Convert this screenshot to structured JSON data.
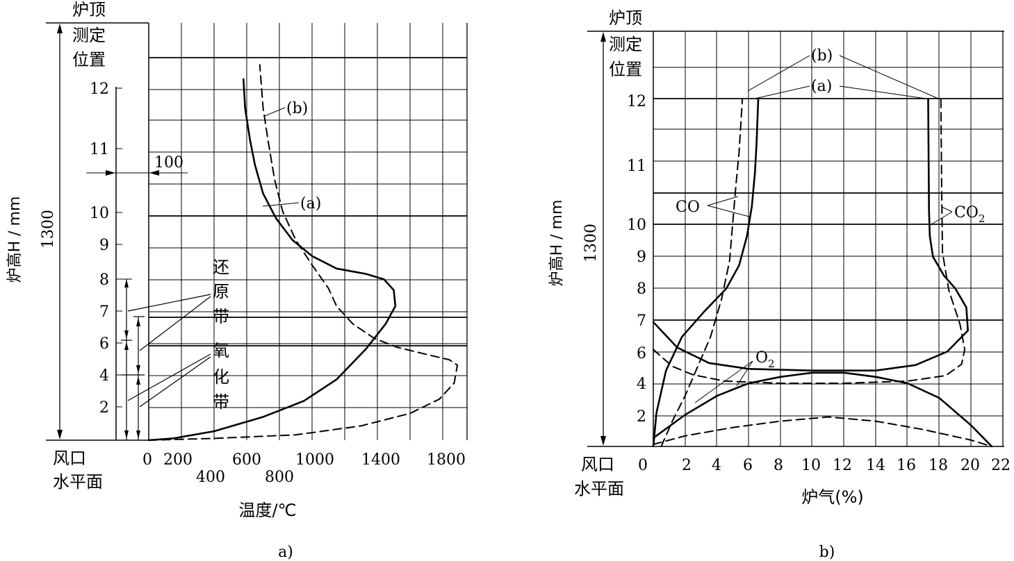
{
  "chart_data": [
    {
      "id": "a",
      "type": "line",
      "caption": "a)",
      "top_label_line1": "炉顶",
      "top_label_line2": "测定",
      "top_label_line3": "位置",
      "bottom_label_line1": "风口",
      "bottom_label_line2": "水平面",
      "ylabel": "炉高H / mm",
      "height_dim": "1300",
      "xlabel": "温度/℃",
      "xlim": [
        0,
        2000
      ],
      "x_ticks_row1": [
        "0",
        "200",
        "600",
        "1000",
        "1400",
        "1800"
      ],
      "x_ticks_row2": [
        "400",
        "800"
      ],
      "y_ticks": [
        "2",
        "4",
        "6",
        "7",
        "8",
        "9",
        "10",
        "11",
        "12"
      ],
      "dim_100": "100",
      "zone_reduction": [
        "还",
        "原",
        "带"
      ],
      "zone_oxidation": [
        "氧",
        "化",
        "带"
      ],
      "series": [
        {
          "name": "(a)",
          "style": "solid",
          "points": [
            [
              0,
              0
            ],
            [
              150,
              0.05
            ],
            [
              400,
              0.25
            ],
            [
              700,
              0.65
            ],
            [
              950,
              1.1
            ],
            [
              1150,
              1.7
            ],
            [
              1330,
              2.55
            ],
            [
              1450,
              3.25
            ],
            [
              1510,
              3.75
            ],
            [
              1500,
              4.2
            ],
            [
              1440,
              4.5
            ],
            [
              1330,
              4.65
            ],
            [
              1150,
              4.8
            ],
            [
              1000,
              5.15
            ],
            [
              880,
              5.6
            ],
            [
              780,
              6.2
            ],
            [
              700,
              6.9
            ],
            [
              650,
              7.7
            ],
            [
              620,
              8.4
            ],
            [
              590,
              9.3
            ],
            [
              580,
              10.1
            ]
          ]
        },
        {
          "name": "(b)",
          "style": "dashed",
          "points": [
            [
              0,
              0
            ],
            [
              400,
              0.05
            ],
            [
              900,
              0.15
            ],
            [
              1300,
              0.4
            ],
            [
              1600,
              0.75
            ],
            [
              1780,
              1.15
            ],
            [
              1870,
              1.6
            ],
            [
              1890,
              2.1
            ],
            [
              1840,
              2.25
            ],
            [
              1700,
              2.4
            ],
            [
              1520,
              2.6
            ],
            [
              1380,
              2.85
            ],
            [
              1250,
              3.25
            ],
            [
              1150,
              3.75
            ],
            [
              1100,
              4.25
            ],
            [
              1000,
              4.9
            ],
            [
              900,
              5.6
            ],
            [
              820,
              6.4
            ],
            [
              770,
              7.3
            ],
            [
              730,
              8.4
            ],
            [
              700,
              9.3
            ],
            [
              680,
              10.5
            ]
          ]
        }
      ]
    },
    {
      "id": "b",
      "type": "line",
      "caption": "b)",
      "top_label_line1": "炉顶",
      "top_label_line2": "测定",
      "top_label_line3": "位置",
      "bottom_label_line1": "风口",
      "bottom_label_line2": "水平面",
      "ylabel": "炉高H / mm",
      "height_dim": "1300",
      "xlabel": "炉气(%)",
      "xlim": [
        0,
        22
      ],
      "x_ticks": [
        "0",
        "2",
        "4",
        "6",
        "8",
        "10",
        "12",
        "14",
        "16",
        "18",
        "20",
        "22"
      ],
      "y_ticks": [
        "2",
        "4",
        "6",
        "7",
        "8",
        "9",
        "10",
        "11",
        "12"
      ],
      "label_b": "(b)",
      "label_a": "(a)",
      "label_co": "CO",
      "label_co2_main": "CO",
      "label_co2_sub": "2",
      "label_o2_main": "O",
      "label_o2_sub": "2",
      "series": [
        {
          "name": "CO (a)",
          "style": "solid",
          "points": [
            [
              0,
              0
            ],
            [
              0.2,
              0.8
            ],
            [
              0.8,
              1.8
            ],
            [
              1.8,
              2.6
            ],
            [
              3.2,
              3.2
            ],
            [
              4.6,
              3.75
            ],
            [
              5.4,
              4.3
            ],
            [
              5.9,
              5.0
            ],
            [
              6.2,
              5.7
            ],
            [
              6.4,
              6.5
            ],
            [
              6.5,
              7.2
            ],
            [
              6.6,
              8.2
            ]
          ]
        },
        {
          "name": "CO (b)",
          "style": "dashed",
          "points": [
            [
              0.5,
              0
            ],
            [
              1.2,
              0.6
            ],
            [
              2.0,
              1.2
            ],
            [
              2.8,
              1.9
            ],
            [
              3.6,
              2.6
            ],
            [
              4.3,
              3.5
            ],
            [
              4.8,
              4.4
            ],
            [
              5.0,
              5.3
            ],
            [
              5.2,
              6.2
            ],
            [
              5.4,
              7.0
            ],
            [
              5.6,
              8.2
            ]
          ]
        },
        {
          "name": "CO2 (a)",
          "style": "solid",
          "points": [
            [
              0,
              2.95
            ],
            [
              1.5,
              2.35
            ],
            [
              3.5,
              1.98
            ],
            [
              6,
              1.84
            ],
            [
              10,
              1.8
            ],
            [
              14,
              1.8
            ],
            [
              16.5,
              1.93
            ],
            [
              18.5,
              2.25
            ],
            [
              19.8,
              2.75
            ],
            [
              19.7,
              3.3
            ],
            [
              19.0,
              3.75
            ],
            [
              18.3,
              4.05
            ],
            [
              17.6,
              4.5
            ],
            [
              17.4,
              5.0
            ],
            [
              17.35,
              5.6
            ],
            [
              17.3,
              8.2
            ]
          ]
        },
        {
          "name": "CO2 (b)",
          "style": "dashed",
          "points": [
            [
              0,
              2.3
            ],
            [
              1.2,
              1.9
            ],
            [
              2.5,
              1.7
            ],
            [
              4.5,
              1.55
            ],
            [
              8,
              1.5
            ],
            [
              12,
              1.5
            ],
            [
              16,
              1.55
            ],
            [
              18.4,
              1.68
            ],
            [
              19.4,
              1.95
            ],
            [
              19.6,
              2.3
            ],
            [
              19.3,
              2.9
            ],
            [
              18.6,
              3.7
            ],
            [
              18.2,
              4.6
            ],
            [
              18.15,
              6.0
            ],
            [
              18.1,
              8.2
            ]
          ]
        },
        {
          "name": "O2 (a)",
          "style": "solid",
          "points": [
            [
              0,
              0.2
            ],
            [
              2,
              0.75
            ],
            [
              4,
              1.2
            ],
            [
              6,
              1.5
            ],
            [
              8,
              1.65
            ],
            [
              10,
              1.75
            ],
            [
              12,
              1.75
            ],
            [
              14,
              1.65
            ],
            [
              16,
              1.5
            ],
            [
              18,
              1.15
            ],
            [
              20,
              0.5
            ],
            [
              21.3,
              0
            ]
          ]
        },
        {
          "name": "O2 (b)",
          "style": "dashed",
          "points": [
            [
              0,
              0.05
            ],
            [
              2,
              0.25
            ],
            [
              5,
              0.45
            ],
            [
              8,
              0.6
            ],
            [
              11,
              0.7
            ],
            [
              14,
              0.6
            ],
            [
              17,
              0.4
            ],
            [
              20,
              0.15
            ],
            [
              21.3,
              0
            ]
          ]
        }
      ]
    }
  ]
}
